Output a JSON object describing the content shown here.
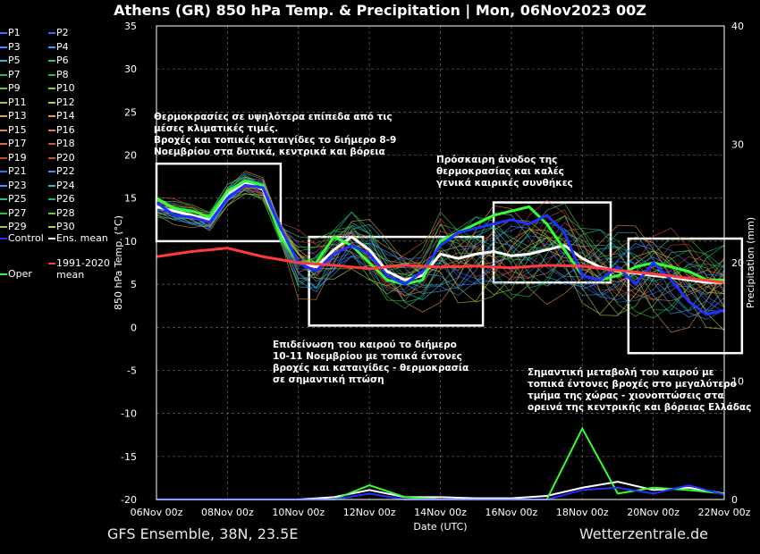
{
  "title": "Athens  (GR)  850 hPa Temp. & Precipitation | Mon, 06Nov2023 00Z",
  "footer_left": "GFS Ensemble, 38N, 23.5E",
  "footer_right": "Wetterzentrale.de",
  "legend": {
    "items": [
      {
        "label": "P1",
        "color": "#3a6bff"
      },
      {
        "label": "P2",
        "color": "#3a6bff"
      },
      {
        "label": "P3",
        "color": "#3a8cff"
      },
      {
        "label": "P4",
        "color": "#3aa0ff"
      },
      {
        "label": "P5",
        "color": "#2eb8d0"
      },
      {
        "label": "P6",
        "color": "#1fc08a"
      },
      {
        "label": "P7",
        "color": "#1fb870"
      },
      {
        "label": "P8",
        "color": "#2ab84a"
      },
      {
        "label": "P9",
        "color": "#5ac83a"
      },
      {
        "label": "P10",
        "color": "#7ad03a"
      },
      {
        "label": "P11",
        "color": "#a8c83a"
      },
      {
        "label": "P12",
        "color": "#c8c040"
      },
      {
        "label": "P13",
        "color": "#d8a840"
      },
      {
        "label": "P14",
        "color": "#e09840"
      },
      {
        "label": "P15",
        "color": "#e08848"
      },
      {
        "label": "P16",
        "color": "#e07858"
      },
      {
        "label": "P17",
        "color": "#d86848"
      },
      {
        "label": "P18",
        "color": "#c85040"
      },
      {
        "label": "P19",
        "color": "#b84838"
      },
      {
        "label": "P20",
        "color": "#d04848"
      },
      {
        "label": "P21",
        "color": "#3a6bff"
      },
      {
        "label": "P22",
        "color": "#3a8cff"
      },
      {
        "label": "P23",
        "color": "#3aa0ff"
      },
      {
        "label": "P24",
        "color": "#2eb8d0"
      },
      {
        "label": "P25",
        "color": "#1fc08a"
      },
      {
        "label": "P26",
        "color": "#1fb870"
      },
      {
        "label": "P27",
        "color": "#2ab84a"
      },
      {
        "label": "P28",
        "color": "#5ac83a"
      },
      {
        "label": "P29",
        "color": "#a8c83a"
      },
      {
        "label": "P30",
        "color": "#c8c040"
      },
      {
        "label": "Control",
        "color": "#2030ff"
      },
      {
        "label": "Ens. mean",
        "color": "#ffffff"
      },
      {
        "label": "1991-2020 mean",
        "color": "#ff3b3b"
      },
      {
        "label": "Oper",
        "color": "#33ff33"
      }
    ]
  },
  "annotations": [
    {
      "lines": [
        "Θερμοκρασίες σε υψηλότερα επίπεδα από τις",
        "μέσες κλιματικές τιμές.",
        "Βροχές και τοπικές καταιγίδες το διήμερο 8-9",
        "Νοεμβρίου στα δυτικά, κεντρικά και βόρεια"
      ]
    },
    {
      "lines": [
        "Πρόσκαιρη άνοδος της",
        "θερμοκρασίας και καλές",
        "γενικά καιρικές συνθήκες"
      ]
    },
    {
      "lines": [
        "Επιδείνωση του καιρού το διήμερο",
        "10-11 Νοεμβρίου με τοπικά έντονες",
        "βροχές και καταιγίδες - θερμοκρασία",
        "σε σημαντική πτώση"
      ]
    },
    {
      "lines": [
        "Σημαντική μεταβολή του καιρού με",
        "τοπικά έντονες βροχές στο μεγαλύτερο",
        "τμήμα της χώρας - χιονοπτώσεις στα",
        "ορεινά της κεντρικής και βόρειας Ελλάδας"
      ]
    }
  ],
  "chart_data": {
    "type": "line",
    "title": "Athens  (GR)  850 hPa Temp. & Precipitation | Mon, 06Nov2023 00Z",
    "xlabel": "Date (UTC)",
    "ylabel": "850 hPa Temp. (°C)",
    "y2label": "Precipitation (mm)",
    "x_ticks": [
      "06Nov 00z",
      "08Nov 00z",
      "10Nov 00z",
      "12Nov 00z",
      "14Nov 00z",
      "16Nov 00z",
      "18Nov 00z",
      "20Nov 00z",
      "22Nov 00z"
    ],
    "x_days": [
      0,
      2,
      4,
      6,
      8,
      10,
      12,
      14,
      16
    ],
    "ylim": [
      -20,
      35
    ],
    "y_ticks": [
      -20,
      -15,
      -10,
      -5,
      0,
      5,
      10,
      15,
      20,
      25,
      30,
      35
    ],
    "y2lim": [
      0,
      40
    ],
    "y2_ticks": [
      0,
      10,
      20,
      30,
      40
    ],
    "grid": true,
    "series": [
      {
        "name": "Ens. mean",
        "color": "#ffffff",
        "axis": "temp",
        "x": [
          0,
          0.5,
          1,
          1.5,
          2,
          2.5,
          3,
          3.5,
          4,
          4.5,
          5,
          5.5,
          6,
          6.5,
          7,
          7.5,
          8,
          8.5,
          9,
          9.5,
          10,
          10.5,
          11,
          11.5,
          12,
          12.5,
          13,
          13.5,
          14,
          14.5,
          15,
          15.5,
          16
        ],
        "y": [
          14,
          13.5,
          13,
          12.5,
          15.5,
          16.8,
          16,
          11,
          7.5,
          7,
          9,
          10.5,
          9,
          6.5,
          5.5,
          6,
          8.5,
          8,
          8.5,
          8.8,
          8.3,
          8.5,
          9,
          9.5,
          8,
          7,
          6.5,
          6.3,
          6,
          5.8,
          5.5,
          5.2,
          5.2
        ]
      },
      {
        "name": "Oper",
        "color": "#33ff33",
        "axis": "temp",
        "x": [
          0,
          0.5,
          1,
          1.5,
          2,
          2.5,
          3,
          3.5,
          4,
          4.5,
          5,
          5.5,
          6,
          6.5,
          7,
          7.5,
          8,
          8.5,
          9,
          9.5,
          10,
          10.5,
          11,
          11.5,
          12,
          12.5,
          13,
          13.5,
          14,
          14.5,
          15,
          15.5,
          16
        ],
        "y": [
          15,
          13.8,
          13.5,
          12.8,
          15.8,
          17,
          16.5,
          10.5,
          7.5,
          7.5,
          10.5,
          9.5,
          7.5,
          5.5,
          5,
          5.5,
          10,
          11,
          12,
          13,
          13.5,
          14,
          12,
          9,
          6,
          5.5,
          6,
          7,
          7.5,
          7,
          6.5,
          5.5,
          5.5
        ]
      },
      {
        "name": "Control",
        "color": "#2030ff",
        "axis": "temp",
        "x": [
          0,
          0.5,
          1,
          1.5,
          2,
          2.5,
          3,
          3.5,
          4,
          4.5,
          5,
          5.5,
          6,
          6.5,
          7,
          7.5,
          8,
          8.5,
          9,
          9.5,
          10,
          10.5,
          11,
          11.5,
          12,
          12.5,
          13,
          13.5,
          14,
          14.5,
          15,
          15.5,
          16
        ],
        "y": [
          14.5,
          13,
          12.8,
          12.2,
          15,
          16.5,
          16.2,
          11.5,
          7.5,
          6.5,
          8.5,
          9.5,
          8.5,
          6,
          5,
          6.5,
          9.5,
          11,
          11.5,
          12,
          12.5,
          12,
          13,
          11,
          6,
          5.5,
          7,
          5,
          7.5,
          5.5,
          3,
          1.5,
          2
        ]
      },
      {
        "name": "1991-2020 mean",
        "color": "#ff3b3b",
        "axis": "temp",
        "x": [
          0,
          1,
          2,
          3,
          4,
          5,
          6,
          7,
          8,
          9,
          10,
          11,
          12,
          13,
          14,
          15,
          16
        ],
        "y": [
          8.2,
          8.8,
          9.2,
          8.2,
          7.5,
          7.2,
          6.8,
          7.2,
          7,
          7.1,
          6.9,
          7.2,
          7.1,
          6.6,
          6.2,
          5.7,
          5.2
        ]
      },
      {
        "name": "Ens. mean precipitation",
        "color": "#ffffff",
        "axis": "precip",
        "x": [
          0,
          1,
          2,
          3,
          4,
          5,
          6,
          7,
          8,
          9,
          10,
          11,
          12,
          13,
          14,
          15,
          16
        ],
        "y": [
          0,
          0,
          0,
          0,
          0,
          0.2,
          0.8,
          0.2,
          0.2,
          0.1,
          0.1,
          0.3,
          1,
          1.5,
          0.8,
          1,
          0.5
        ]
      },
      {
        "name": "Oper precipitation",
        "color": "#33ff33",
        "axis": "precip",
        "x": [
          0,
          1,
          2,
          3,
          4,
          5,
          6,
          7,
          8,
          9,
          10,
          11,
          12,
          13,
          14,
          15,
          16
        ],
        "y": [
          0,
          0,
          0,
          0,
          0,
          0,
          1.2,
          0.2,
          0,
          0,
          0,
          0,
          6,
          0.5,
          1,
          0.8,
          0.5
        ]
      },
      {
        "name": "Control precipitation",
        "color": "#2030ff",
        "axis": "precip",
        "x": [
          0,
          1,
          2,
          3,
          4,
          5,
          6,
          7,
          8,
          9,
          10,
          11,
          12,
          13,
          14,
          15,
          16
        ],
        "y": [
          0,
          0,
          0,
          0,
          0,
          0,
          0.5,
          0,
          0,
          0,
          0,
          0,
          0.8,
          1,
          0.5,
          1.2,
          0.4
        ]
      }
    ],
    "boxes": [
      {
        "x": [
          0,
          3.5
        ],
        "y": [
          10,
          19
        ]
      },
      {
        "x": [
          4.3,
          9.2
        ],
        "y": [
          0.2,
          10.5
        ]
      },
      {
        "x": [
          9.5,
          12.8
        ],
        "y": [
          5.2,
          14.5
        ]
      },
      {
        "x": [
          13.3,
          18.8
        ],
        "y": [
          -3,
          10.3
        ]
      }
    ]
  }
}
